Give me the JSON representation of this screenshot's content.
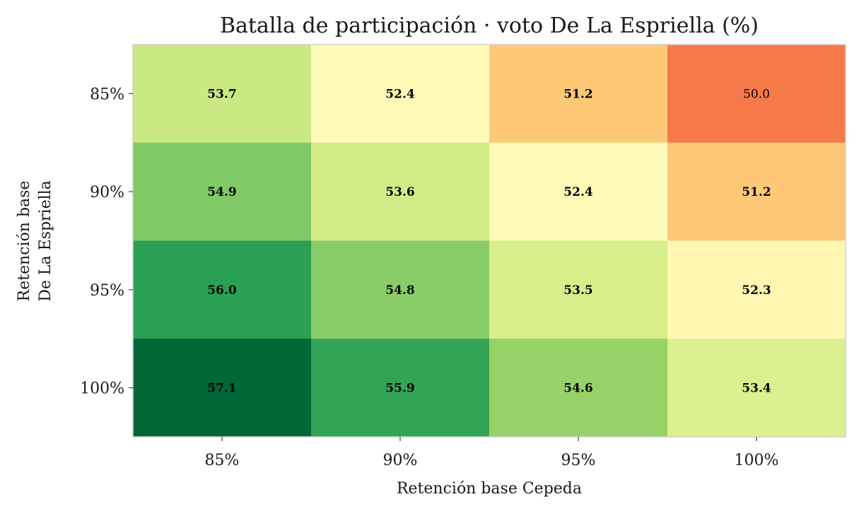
{
  "chart_data": {
    "type": "heatmap",
    "title": "Batalla de participación · voto De La Espriella (%)",
    "xlabel": "Retención base Cepeda",
    "ylabel_lines": [
      "Retención base",
      "De La Espriella"
    ],
    "x_categories": [
      "85%",
      "90%",
      "95%",
      "100%"
    ],
    "y_categories": [
      "85%",
      "90%",
      "95%",
      "100%"
    ],
    "values": [
      [
        53.7,
        52.4,
        51.2,
        50.0
      ],
      [
        54.9,
        53.6,
        52.4,
        51.2
      ],
      [
        56.0,
        54.8,
        53.5,
        52.3
      ],
      [
        57.1,
        55.9,
        54.6,
        53.4
      ]
    ],
    "value_labels": [
      [
        "53.7",
        "52.4",
        "51.2",
        "50.0"
      ],
      [
        "54.9",
        "53.6",
        "52.4",
        "51.2"
      ],
      [
        "56.0",
        "54.8",
        "53.5",
        "52.3"
      ],
      [
        "57.1",
        "55.9",
        "54.6",
        "53.4"
      ]
    ],
    "colormap": "RdYlGn",
    "grid": false,
    "colorbar": false
  }
}
